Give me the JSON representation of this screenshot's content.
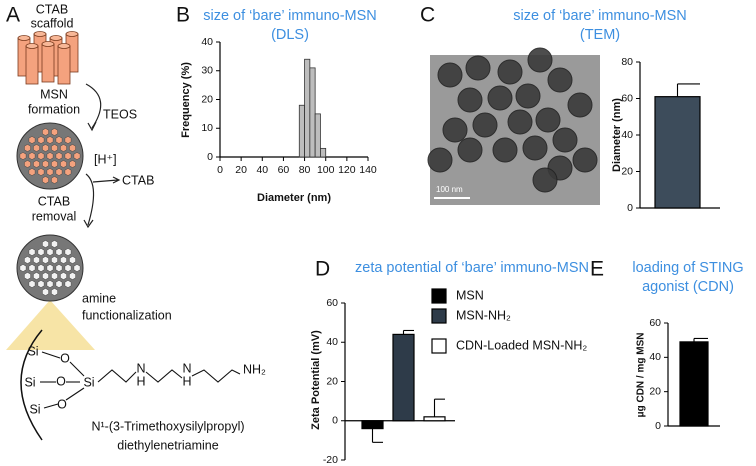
{
  "diagram": {
    "panel": "A",
    "labels": [
      "CTAB",
      "scaffold",
      "TEOS",
      "MSN",
      "formation",
      "[H⁺]",
      "CTAB",
      "CTAB",
      "removal",
      "amine",
      "functionalization",
      "Si",
      "O",
      "Si",
      "O",
      "Si",
      "Si",
      "O",
      "N",
      "H",
      "N",
      "H",
      "NH₂",
      "N¹-(3-Trimethoxysilylpropyl)",
      "diethylenetriamine"
    ]
  },
  "tem_image": {
    "scale_bar": "100 nm"
  },
  "chart_data": [
    {
      "type": "histogram",
      "panel": "B",
      "title": [
        "size of ‘bare’ immuno-MSN",
        "(DLS)"
      ],
      "xlabel": "Diameter (nm)",
      "ylabel": "Frequency (%)",
      "bins": [
        75,
        80,
        85,
        90,
        95,
        100
      ],
      "values": [
        18,
        34,
        31,
        15,
        3
      ],
      "color": "#bdbdbd",
      "xlim": [
        0,
        140
      ],
      "xticks": [
        0,
        20,
        40,
        60,
        80,
        100,
        120,
        140
      ],
      "ylim": [
        0,
        40
      ],
      "yticks": [
        0,
        10,
        20,
        30,
        40
      ]
    },
    {
      "type": "bar",
      "panel": "C",
      "title": [
        "size of ‘bare’ immuno-MSN",
        "(TEM)"
      ],
      "ylabel": "Diameter (nm)",
      "values": [
        61
      ],
      "errors": [
        7
      ],
      "color": "#3d4c5b",
      "ylim": [
        0,
        80
      ],
      "yticks": [
        0,
        20,
        40,
        60,
        80
      ]
    },
    {
      "type": "bar",
      "panel": "D",
      "title": [
        "zeta potential of ‘bare’ immuno-MSN"
      ],
      "ylabel": "Zeta Potential (mV)",
      "series": [
        {
          "name": "MSN",
          "color": "#000000",
          "values": [
            -4
          ],
          "errors": [
            7
          ]
        },
        {
          "name": "MSN-NH₂",
          "color": "#2e3b49",
          "values": [
            44
          ],
          "errors": [
            2
          ]
        },
        {
          "name": "CDN-Loaded MSN-NH₂",
          "color": "#ffffff",
          "values": [
            2
          ],
          "errors": [
            9
          ]
        }
      ],
      "ylim": [
        -20,
        60
      ],
      "yticks": [
        -20,
        0,
        20,
        40,
        60
      ]
    },
    {
      "type": "bar",
      "panel": "E",
      "title": [
        "loading of STING",
        "agonist (CDN)"
      ],
      "ylabel": "μg CDN / mg MSN",
      "values": [
        49
      ],
      "errors": [
        2
      ],
      "color": "#000000",
      "ylim": [
        0,
        60
      ],
      "yticks": [
        0,
        20,
        40,
        60
      ]
    }
  ]
}
